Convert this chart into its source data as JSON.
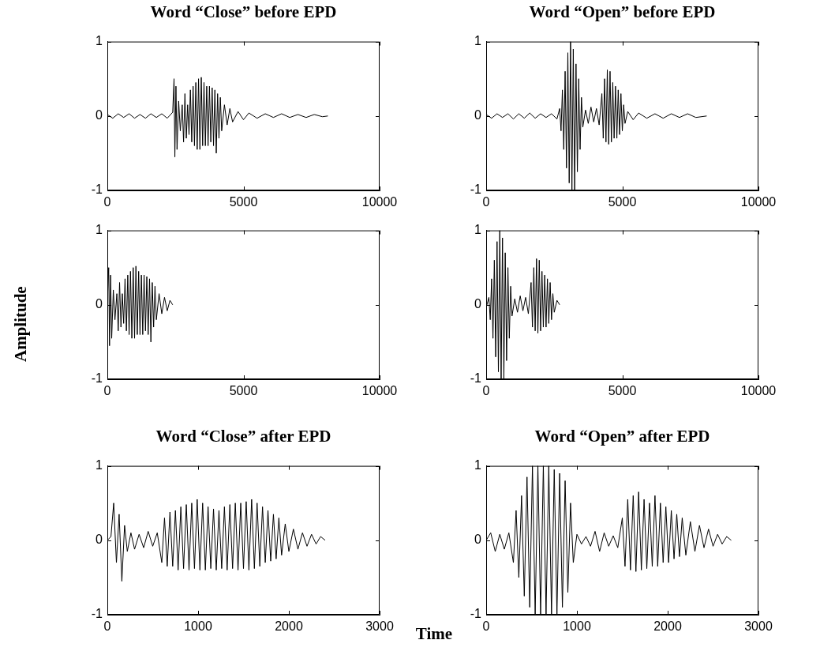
{
  "chart_data": [
    {
      "type": "line",
      "title": "Word “Close” before EPD",
      "xlim": [
        0,
        10000
      ],
      "xticks": [
        0,
        5000,
        10000
      ],
      "ylim": [
        -1,
        1
      ],
      "yticks": [
        -1,
        0,
        1
      ],
      "series": [
        {
          "color": "#000000",
          "x": [
            0,
            200,
            400,
            600,
            800,
            1000,
            1200,
            1400,
            1600,
            1800,
            2000,
            2200,
            2400,
            2450,
            2480,
            2520,
            2560,
            2620,
            2680,
            2750,
            2800,
            2850,
            2900,
            2950,
            3000,
            3050,
            3100,
            3150,
            3200,
            3250,
            3300,
            3350,
            3400,
            3450,
            3500,
            3550,
            3600,
            3650,
            3700,
            3750,
            3800,
            3850,
            3900,
            3950,
            4000,
            4050,
            4100,
            4150,
            4200,
            4300,
            4400,
            4500,
            4600,
            4800,
            5000,
            5200,
            5500,
            5800,
            6100,
            6400,
            6700,
            7000,
            7300,
            7600,
            7900,
            8100
          ],
          "values": [
            0.02,
            -0.03,
            0.03,
            -0.02,
            0.03,
            -0.03,
            0.02,
            -0.03,
            0.03,
            -0.02,
            0.03,
            -0.03,
            0.05,
            0.5,
            -0.55,
            0.4,
            -0.45,
            0.2,
            -0.2,
            0.15,
            -0.35,
            0.3,
            -0.3,
            0.15,
            -0.25,
            0.35,
            -0.35,
            0.4,
            -0.4,
            0.45,
            -0.45,
            0.5,
            -0.45,
            0.52,
            -0.4,
            0.45,
            -0.4,
            0.4,
            -0.4,
            0.4,
            -0.35,
            0.38,
            -0.4,
            0.35,
            -0.5,
            0.3,
            -0.3,
            0.25,
            -0.2,
            0.15,
            -0.12,
            0.1,
            -0.08,
            0.06,
            -0.05,
            0.04,
            -0.03,
            0.03,
            -0.02,
            0.03,
            -0.02,
            0.02,
            -0.02,
            0.02,
            -0.01,
            0
          ]
        }
      ]
    },
    {
      "type": "line",
      "title": "Word “Open” before EPD",
      "xlim": [
        0,
        10000
      ],
      "xticks": [
        0,
        5000,
        10000
      ],
      "ylim": [
        -1,
        1
      ],
      "yticks": [
        -1,
        0,
        1
      ],
      "series": [
        {
          "color": "#000000",
          "x": [
            0,
            200,
            400,
            600,
            800,
            1000,
            1200,
            1400,
            1600,
            1800,
            2000,
            2200,
            2400,
            2600,
            2700,
            2750,
            2800,
            2850,
            2900,
            2950,
            3000,
            3050,
            3100,
            3150,
            3200,
            3250,
            3300,
            3350,
            3400,
            3450,
            3500,
            3550,
            3650,
            3750,
            3850,
            3950,
            4050,
            4150,
            4250,
            4300,
            4350,
            4400,
            4450,
            4500,
            4550,
            4600,
            4650,
            4700,
            4750,
            4800,
            4850,
            4900,
            4950,
            5000,
            5050,
            5100,
            5200,
            5400,
            5600,
            5900,
            6200,
            6500,
            6800,
            7100,
            7400,
            7700,
            8100
          ],
          "values": [
            0.02,
            -0.03,
            0.03,
            -0.02,
            0.03,
            -0.04,
            0.03,
            -0.03,
            0.04,
            -0.03,
            0.03,
            -0.02,
            0.03,
            -0.04,
            0.1,
            -0.2,
            0.35,
            -0.45,
            0.6,
            -0.7,
            0.85,
            -0.9,
            1,
            -1,
            0.9,
            -1,
            0.7,
            -0.75,
            0.5,
            -0.45,
            0.25,
            -0.15,
            0.08,
            -0.1,
            0.12,
            -0.08,
            0.1,
            -0.12,
            0.3,
            -0.3,
            0.5,
            -0.35,
            0.62,
            -0.38,
            0.6,
            -0.35,
            0.45,
            -0.3,
            0.4,
            -0.3,
            0.35,
            -0.25,
            0.3,
            -0.2,
            0.15,
            -0.1,
            0.06,
            -0.05,
            0.04,
            -0.03,
            0.03,
            -0.03,
            0.03,
            -0.02,
            0.03,
            -0.02,
            0
          ]
        }
      ]
    },
    {
      "type": "line",
      "ylabel": "Amplitude",
      "xlim": [
        0,
        10000
      ],
      "xticks": [
        0,
        5000,
        10000
      ],
      "ylim": [
        -1,
        1
      ],
      "yticks": [
        -1,
        0,
        1
      ],
      "series": [
        {
          "color": "#000000",
          "x": [
            0,
            50,
            80,
            120,
            160,
            220,
            280,
            350,
            400,
            450,
            500,
            550,
            600,
            650,
            700,
            750,
            800,
            850,
            900,
            950,
            1000,
            1050,
            1100,
            1150,
            1200,
            1250,
            1300,
            1350,
            1400,
            1450,
            1500,
            1550,
            1600,
            1650,
            1700,
            1750,
            1800,
            1900,
            2000,
            2100,
            2200,
            2300,
            2400
          ],
          "values": [
            0.05,
            0.5,
            -0.55,
            0.4,
            -0.45,
            0.2,
            -0.2,
            0.15,
            -0.35,
            0.3,
            -0.3,
            0.15,
            -0.25,
            0.35,
            -0.35,
            0.4,
            -0.4,
            0.45,
            -0.45,
            0.5,
            -0.45,
            0.52,
            -0.4,
            0.45,
            -0.4,
            0.4,
            -0.4,
            0.4,
            -0.35,
            0.38,
            -0.4,
            0.35,
            -0.5,
            0.3,
            -0.3,
            0.25,
            -0.2,
            0.15,
            -0.12,
            0.1,
            -0.08,
            0.06,
            0
          ]
        }
      ]
    },
    {
      "type": "line",
      "xlim": [
        0,
        10000
      ],
      "xticks": [
        0,
        5000,
        10000
      ],
      "ylim": [
        -1,
        1
      ],
      "yticks": [
        -1,
        0,
        1
      ],
      "series": [
        {
          "color": "#000000",
          "x": [
            0,
            100,
            150,
            200,
            250,
            300,
            350,
            400,
            450,
            500,
            550,
            600,
            650,
            700,
            750,
            800,
            850,
            900,
            950,
            1050,
            1150,
            1250,
            1350,
            1450,
            1550,
            1650,
            1700,
            1750,
            1800,
            1850,
            1900,
            1950,
            2000,
            2050,
            2100,
            2150,
            2200,
            2250,
            2300,
            2350,
            2400,
            2450,
            2500,
            2600,
            2700
          ],
          "values": [
            -0.04,
            0.1,
            -0.2,
            0.35,
            -0.45,
            0.6,
            -0.7,
            0.85,
            -0.9,
            1,
            -1,
            0.9,
            -1,
            0.7,
            -0.75,
            0.5,
            -0.45,
            0.25,
            -0.15,
            0.08,
            -0.1,
            0.12,
            -0.08,
            0.1,
            -0.12,
            0.3,
            -0.3,
            0.5,
            -0.35,
            0.62,
            -0.38,
            0.6,
            -0.35,
            0.45,
            -0.3,
            0.4,
            -0.3,
            0.35,
            -0.25,
            0.3,
            -0.2,
            0.15,
            -0.1,
            0.06,
            0
          ]
        }
      ]
    },
    {
      "type": "line",
      "title": "Word “Close” after EPD",
      "xlabel": "Time",
      "xlim": [
        0,
        3000
      ],
      "xticks": [
        0,
        1000,
        2000,
        3000
      ],
      "ylim": [
        -1,
        1
      ],
      "yticks": [
        -1,
        0,
        1
      ],
      "series": [
        {
          "color": "#000000",
          "x": [
            0,
            40,
            70,
            100,
            130,
            160,
            190,
            220,
            260,
            300,
            350,
            400,
            450,
            500,
            550,
            600,
            630,
            660,
            690,
            720,
            750,
            780,
            810,
            840,
            870,
            900,
            930,
            960,
            990,
            1020,
            1050,
            1080,
            1110,
            1140,
            1170,
            1200,
            1230,
            1260,
            1290,
            1320,
            1350,
            1380,
            1410,
            1440,
            1470,
            1500,
            1530,
            1560,
            1590,
            1620,
            1650,
            1680,
            1710,
            1740,
            1770,
            1800,
            1830,
            1860,
            1890,
            1920,
            1960,
            2000,
            2050,
            2100,
            2150,
            2200,
            2250,
            2300,
            2350,
            2400
          ],
          "values": [
            0,
            0.05,
            0.5,
            -0.3,
            0.35,
            -0.55,
            0.2,
            -0.15,
            0.1,
            -0.12,
            0.08,
            -0.1,
            0.12,
            -0.08,
            0.1,
            -0.3,
            0.3,
            -0.35,
            0.38,
            -0.35,
            0.4,
            -0.4,
            0.45,
            -0.38,
            0.48,
            -0.4,
            0.5,
            -0.38,
            0.55,
            -0.4,
            0.5,
            -0.4,
            0.45,
            -0.38,
            0.42,
            -0.4,
            0.4,
            -0.38,
            0.45,
            -0.4,
            0.48,
            -0.38,
            0.5,
            -0.4,
            0.5,
            -0.38,
            0.52,
            -0.4,
            0.55,
            -0.38,
            0.5,
            -0.35,
            0.45,
            -0.3,
            0.4,
            -0.28,
            0.35,
            -0.25,
            0.3,
            -0.2,
            0.22,
            -0.15,
            0.15,
            -0.12,
            0.1,
            -0.08,
            0.08,
            -0.05,
            0.05,
            0
          ]
        }
      ]
    },
    {
      "type": "line",
      "title": "Word “Open” after EPD",
      "xlim": [
        0,
        3000
      ],
      "xticks": [
        0,
        1000,
        2000,
        3000
      ],
      "ylim": [
        -1,
        1
      ],
      "yticks": [
        -1,
        0,
        1
      ],
      "series": [
        {
          "color": "#000000",
          "x": [
            0,
            50,
            100,
            150,
            200,
            250,
            300,
            330,
            360,
            390,
            420,
            450,
            480,
            510,
            540,
            570,
            600,
            630,
            660,
            690,
            720,
            750,
            780,
            810,
            840,
            870,
            900,
            930,
            960,
            1000,
            1050,
            1100,
            1150,
            1200,
            1250,
            1300,
            1350,
            1400,
            1450,
            1500,
            1530,
            1560,
            1590,
            1620,
            1650,
            1680,
            1710,
            1740,
            1770,
            1800,
            1830,
            1860,
            1890,
            1920,
            1950,
            1980,
            2010,
            2040,
            2070,
            2100,
            2130,
            2160,
            2200,
            2250,
            2300,
            2350,
            2400,
            2450,
            2500,
            2550,
            2600,
            2650,
            2700
          ],
          "values": [
            0,
            0.1,
            -0.15,
            0.08,
            -0.12,
            0.1,
            -0.3,
            0.4,
            -0.5,
            0.6,
            -0.75,
            0.85,
            -0.9,
            1,
            -1,
            1,
            -1,
            1,
            -1,
            1,
            -1,
            0.95,
            -1,
            0.9,
            -0.9,
            0.8,
            -0.7,
            0.5,
            -0.3,
            0.08,
            -0.05,
            0.05,
            -0.08,
            0.12,
            -0.15,
            0.1,
            -0.08,
            0.06,
            -0.1,
            0.3,
            -0.35,
            0.55,
            -0.4,
            0.6,
            -0.42,
            0.65,
            -0.4,
            0.55,
            -0.38,
            0.5,
            -0.35,
            0.6,
            -0.35,
            0.5,
            -0.3,
            0.45,
            -0.3,
            0.4,
            -0.25,
            0.35,
            -0.22,
            0.3,
            -0.2,
            0.25,
            -0.15,
            0.2,
            -0.1,
            0.15,
            -0.08,
            0.08,
            -0.05,
            0.05,
            0
          ]
        }
      ]
    }
  ]
}
